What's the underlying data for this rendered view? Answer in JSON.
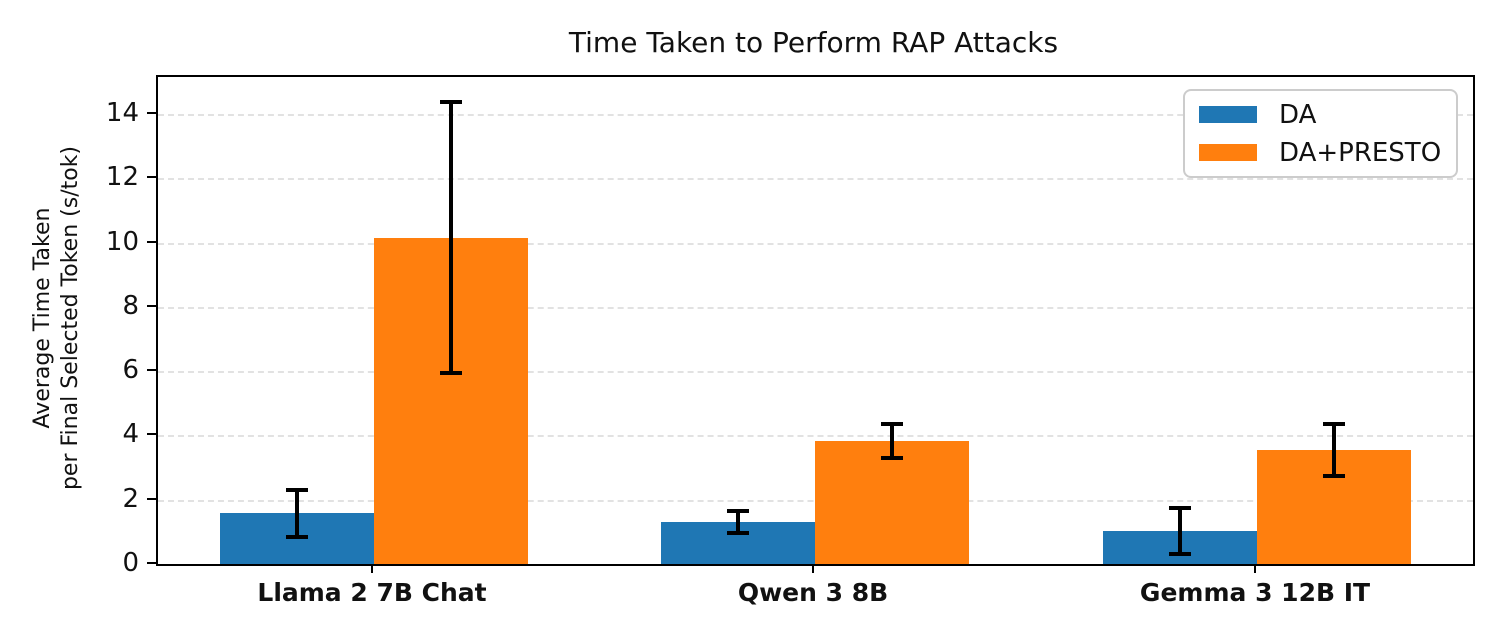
{
  "chart_data": {
    "type": "bar",
    "title": "Time Taken to Perform RAP Attacks",
    "ylabel_lines": [
      "Average Time Taken",
      "per Final Selected Token (s/tok)"
    ],
    "xlabel": "",
    "categories": [
      "Llama 2 7B Chat",
      "Qwen 3 8B",
      "Gemma 3 12B IT"
    ],
    "series": [
      {
        "name": "DA",
        "color": "#1f77b4",
        "values": [
          1.58,
          1.31,
          1.03
        ],
        "errors": [
          0.79,
          0.41,
          0.78
        ]
      },
      {
        "name": "DA+PRESTO",
        "color": "#ff7f0e",
        "values": [
          10.15,
          3.83,
          3.55
        ],
        "errors": [
          4.28,
          0.6,
          0.86
        ]
      }
    ],
    "yticks": [
      0,
      2,
      4,
      6,
      8,
      10,
      12,
      14
    ],
    "ylim": [
      0,
      15.15
    ],
    "xlim": [
      -0.49,
      2.49
    ],
    "bar_width_data_units": 0.35,
    "grid": "horizontal-dashed",
    "grid_color": "#e2e2e2",
    "legend_position": "upper-right",
    "legend_border_color": "#cccccc"
  }
}
